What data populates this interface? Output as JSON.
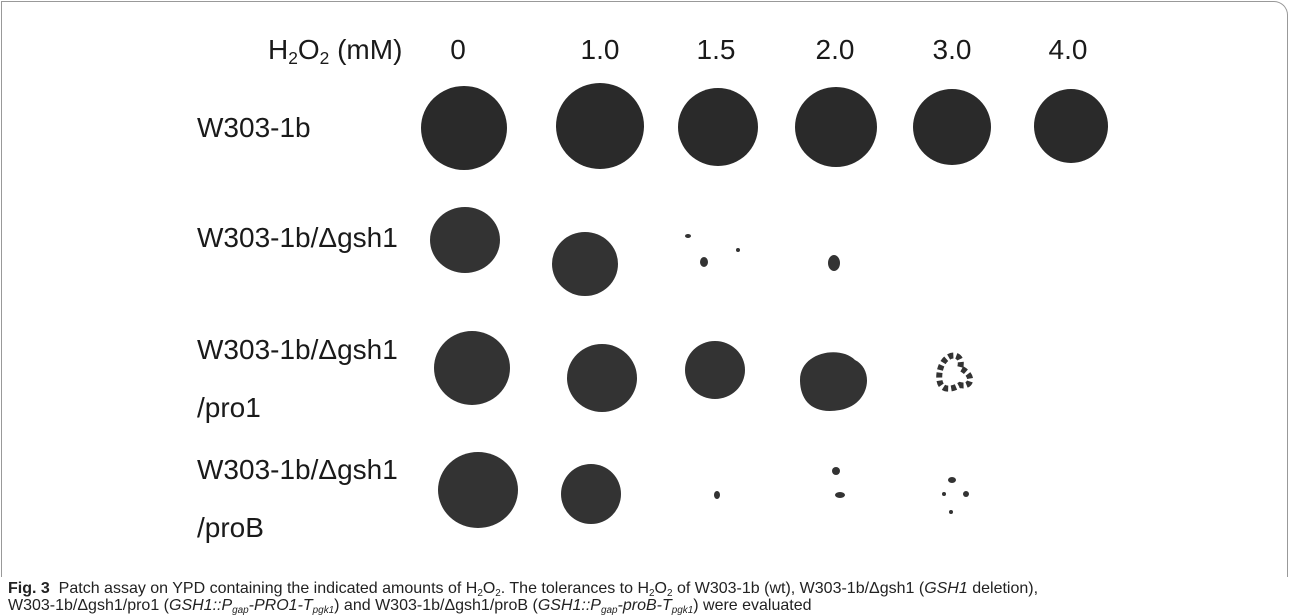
{
  "figure": {
    "header": {
      "label": [
        "H",
        "2",
        "O",
        "2",
        " (mM)"
      ],
      "concentrations": [
        "0",
        "1.0",
        "1.5",
        "2.0",
        "3.0",
        "4.0"
      ]
    },
    "rows": [
      [
        "W303-1b"
      ],
      [
        "W303-1b/Δgsh1"
      ],
      [
        "W303-1b/Δgsh1",
        "/pro1"
      ],
      [
        "W303-1b/Δgsh1",
        "/proB"
      ]
    ]
  },
  "caption": [
    "Fig. 3",
    " Patch assay on YPD containing the indicated amounts of H",
    "2",
    "O",
    "2",
    ". The tolerances to H",
    "2",
    "O",
    "2",
    " of W303-1b (wt), W303-1b/Δgsh1 (",
    "GSH1",
    " deletion),",
    "W303-1b/Δgsh1/pro1 (",
    "GSH1::P",
    "gap",
    "-PRO1-T",
    "pgk1",
    ") and W303-1b/Δgsh1/proB (",
    "GSH1::P",
    "gap",
    "-proB-T",
    "pgk1",
    ") were evaluated"
  ]
}
